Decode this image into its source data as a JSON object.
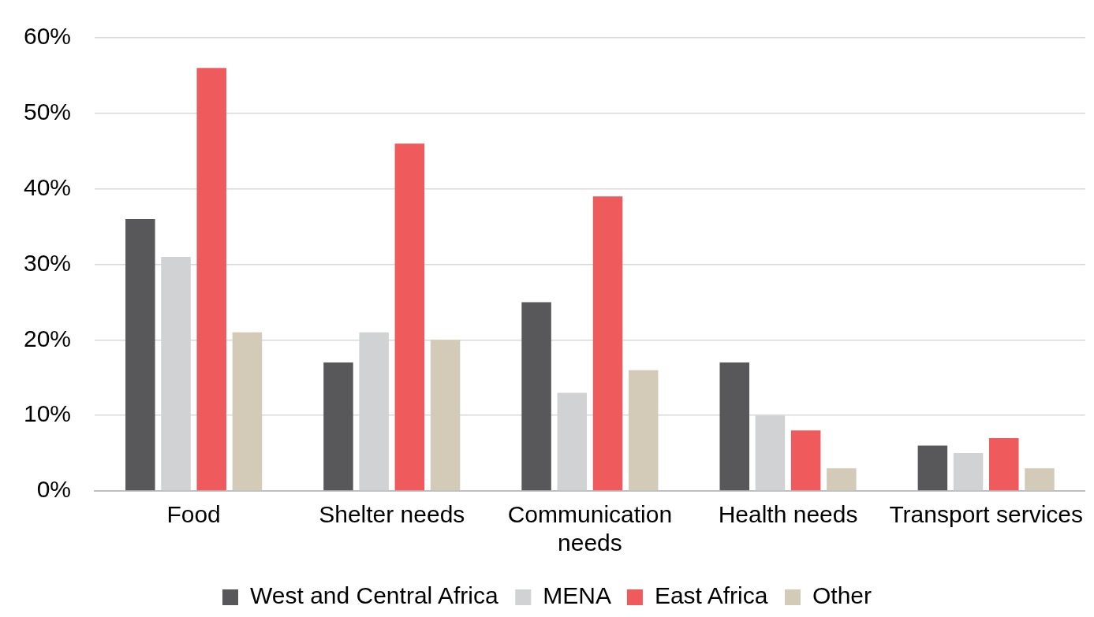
{
  "chart_data": {
    "type": "bar",
    "categories": [
      "Food",
      "Shelter needs",
      "Communication needs",
      "Health needs",
      "Transport services"
    ],
    "series": [
      {
        "name": "West and Central Africa",
        "color": "#58585a",
        "values": [
          36,
          17,
          25,
          17,
          6
        ]
      },
      {
        "name": "MENA",
        "color": "#d1d2d4",
        "values": [
          31,
          21,
          13,
          10,
          5
        ]
      },
      {
        "name": "East Africa",
        "color": "#ef5a5c",
        "values": [
          56,
          46,
          39,
          8,
          7
        ]
      },
      {
        "name": "Other",
        "color": "#d3cbb7",
        "values": [
          21,
          20,
          16,
          3,
          3
        ]
      }
    ],
    "ylim": [
      0,
      60
    ],
    "yticks": [
      {
        "value": 0,
        "label": "0%"
      },
      {
        "value": 10,
        "label": "10%"
      },
      {
        "value": 20,
        "label": "20%"
      },
      {
        "value": 30,
        "label": "30%"
      },
      {
        "value": 40,
        "label": "40%"
      },
      {
        "value": 50,
        "label": "50%"
      },
      {
        "value": 60,
        "label": "60%"
      }
    ],
    "grid": "y",
    "legend": "bottom"
  }
}
